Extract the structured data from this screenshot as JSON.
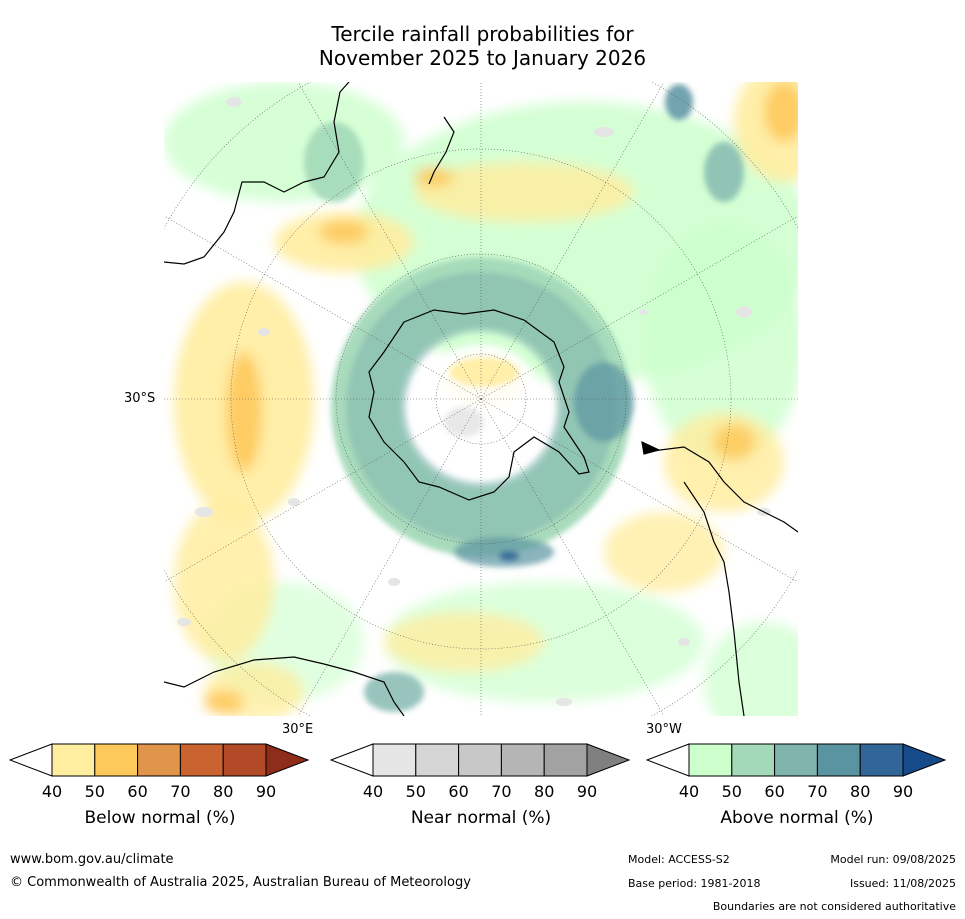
{
  "title": {
    "line1": "Tercile rainfall probabilities for",
    "line2": "November 2025 to January 2026"
  },
  "map_labels": {
    "lat_30s": "30°S",
    "lon_30e": "30°E",
    "lon_30w": "30°W"
  },
  "colorbars": [
    {
      "label": "Below normal (%)",
      "ticks": [
        "40",
        "50",
        "60",
        "70",
        "80",
        "90"
      ],
      "colors": [
        "#ffeda0",
        "#fec95b",
        "#e0954a",
        "#cb6331",
        "#b24a28",
        "#8e2d1a"
      ]
    },
    {
      "label": "Near normal (%)",
      "ticks": [
        "40",
        "50",
        "60",
        "70",
        "80",
        "90"
      ],
      "colors": [
        "#e5e5e5",
        "#d6d6d6",
        "#c8c8c8",
        "#b5b5b5",
        "#a2a2a2",
        "#808080"
      ]
    },
    {
      "label": "Above normal (%)",
      "ticks": [
        "40",
        "50",
        "60",
        "70",
        "80",
        "90"
      ],
      "colors": [
        "#ccffcc",
        "#a3d9b8",
        "#7fb5ad",
        "#5a94a1",
        "#326699",
        "#174a8a"
      ]
    }
  ],
  "footer": {
    "url": "www.bom.gov.au/climate",
    "copyright": "© Commonwealth of Australia 2025, Australian Bureau of Meteorology",
    "model": "Model: ACCESS-S2",
    "base_period": "Base period: 1981-2018",
    "model_run": "Model run: 09/08/2025",
    "issued": "Issued: 11/08/2025",
    "disclaimer": "Boundaries are not considered authoritative"
  }
}
